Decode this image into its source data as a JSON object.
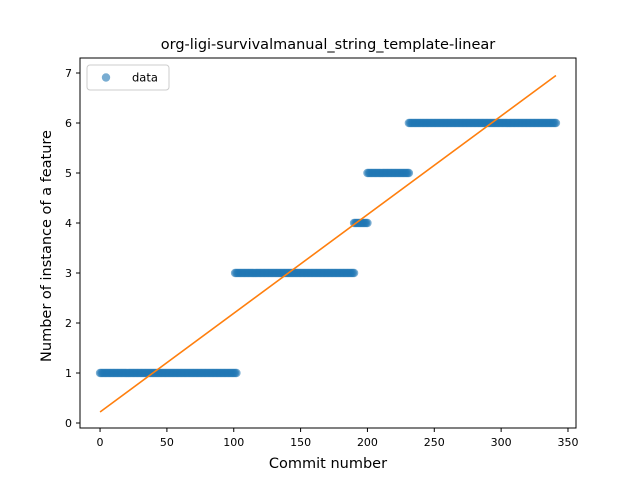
{
  "chart_data": {
    "type": "scatter",
    "title": "org-ligi-survivalmanual_string_template-linear",
    "xlabel": "Commit number",
    "ylabel": "Number of instance of a feature",
    "xlim": [
      -15,
      356
    ],
    "ylim": [
      -0.1,
      7.3
    ],
    "xticks": [
      0,
      50,
      100,
      150,
      200,
      250,
      300,
      350
    ],
    "yticks": [
      0,
      1,
      2,
      3,
      4,
      5,
      6,
      7
    ],
    "legend": {
      "position": "top-left",
      "entries": [
        "data"
      ]
    },
    "grid": false,
    "series": [
      {
        "name": "data",
        "kind": "scatter",
        "color": "#1f77b4",
        "segments": [
          {
            "x_start": 0,
            "x_end": 102,
            "y": 1
          },
          {
            "x_start": 101,
            "x_end": 190,
            "y": 3
          },
          {
            "x_start": 190,
            "x_end": 200,
            "y": 4
          },
          {
            "x_start": 200,
            "x_end": 231,
            "y": 5
          },
          {
            "x_start": 231,
            "x_end": 341,
            "y": 6
          }
        ]
      },
      {
        "kind": "line",
        "color": "#ff7f0e",
        "points": [
          {
            "x": 0,
            "y": 0.22
          },
          {
            "x": 341,
            "y": 6.95
          }
        ]
      }
    ]
  }
}
